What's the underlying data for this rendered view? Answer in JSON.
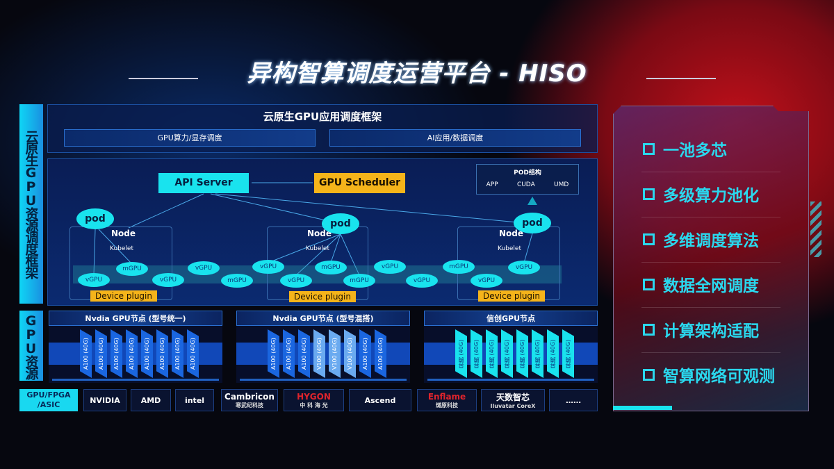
{
  "title": "异构智算调度运营平台 - HISO",
  "left_labels": {
    "framework": "云原生GPU资源调度框架",
    "resources": "GPU资源"
  },
  "framework": {
    "title": "云原生GPU应用调度框架",
    "sub": [
      "GPU算力/显存调度",
      "AI应用/数据调度"
    ],
    "api_server": "API Server",
    "gpu_scheduler": "GPU Scheduler",
    "pod_structure": {
      "title": "POD结构",
      "items": [
        "APP",
        "CUDA",
        "UMD"
      ]
    },
    "node_label": "Node",
    "kubelet_label": "Kubelet",
    "pod_label": "pod",
    "device_plugin": "Device plugin",
    "units": [
      "vGPU",
      "mGPU",
      "vGPU",
      "vGPU",
      "mGPU",
      "vGPU",
      "vGPU",
      "mGPU",
      "mGPU",
      "vGPU",
      "vGPU",
      "mGPU",
      "vGPU",
      "vGPU"
    ]
  },
  "gpu_nodes": [
    {
      "title": "Nvdia GPU节点 (型号统一)",
      "chips": [
        "A100 (40G)",
        "A100 (40G)",
        "A100 (40G)",
        "A100 (40G)",
        "A100 (40G)",
        "A100 (40G)",
        "A100 (40G)",
        "A100 (40G)"
      ]
    },
    {
      "title": "Nvdia GPU节点 (型号混搭)",
      "chips": [
        "A100 (40G)",
        "A100 (40G)",
        "A100 (40G)",
        "V100 (40G)",
        "V100 (40G)",
        "V100 (40G)",
        "A100 (40G)",
        "A100 (40G)"
      ]
    },
    {
      "title": "信创GPU节点",
      "chips": [
        "昇腾 (40G)",
        "昇腾 (40G)",
        "昇腾 (40G)",
        "昇腾 (40G)",
        "昇腾 (40G)",
        "昇腾 (40G)",
        "昇腾 (40G)",
        "昇腾 (40G)"
      ]
    }
  ],
  "vendor_label": "GPU/FPGA /ASIC",
  "vendors": [
    {
      "name": "NVIDIA",
      "sub": "",
      "color": "#ffffff"
    },
    {
      "name": "AMD",
      "sub": "",
      "color": "#ffffff"
    },
    {
      "name": "intel",
      "sub": "",
      "color": "#ffffff"
    },
    {
      "name": "Cambricon",
      "sub": "寒武纪科技",
      "color": "#ffffff"
    },
    {
      "name": "HYGON",
      "sub": "中 科 海 光",
      "color": "#e0242c"
    },
    {
      "name": "Ascend",
      "sub": "",
      "color": "#ffffff"
    },
    {
      "name": "Enflame",
      "sub": "燧原科技",
      "color": "#e0242c"
    },
    {
      "name": "天数智芯",
      "sub": "Iluvatar CoreX",
      "color": "#ffffff"
    },
    {
      "name": "……",
      "sub": "",
      "color": "#ffffff"
    }
  ],
  "features": [
    "一池多芯",
    "多级算力池化",
    "多维调度算法",
    "数据全网调度",
    "计算架构适配",
    "智算网络可观测"
  ],
  "colors": {
    "cyan": "#19e3ee",
    "yellow": "#f5b41a",
    "blue": "#1a66e0",
    "red": "#c0101a"
  }
}
